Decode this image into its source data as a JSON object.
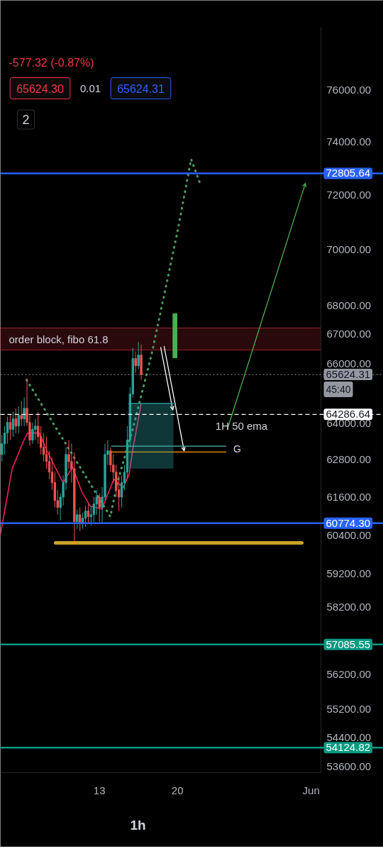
{
  "chart_data": {
    "type": "candlestick",
    "subtitle": "-577.32 (-0.87%)",
    "x": [
      4.25,
      4.5,
      4.75,
      5.0,
      5.25,
      5.5,
      5.75,
      6.0,
      6.25,
      6.5,
      6.75,
      7.0,
      7.25,
      7.5,
      7.75,
      8.0,
      8.25,
      8.5,
      8.75,
      9.0,
      9.25,
      9.5,
      9.75,
      10.0,
      10.25,
      10.5,
      10.75,
      11.0,
      11.25,
      11.5,
      11.75,
      12.0,
      12.25,
      12.5,
      12.75,
      13.0,
      13.25,
      13.5,
      13.75,
      14.0,
      14.25,
      14.5,
      14.75,
      15.0,
      15.25,
      15.5,
      15.75,
      16.0,
      16.25,
      16.5,
      16.75
    ],
    "ohlc": [
      [
        62970,
        63600,
        62740,
        63320
      ],
      [
        63320,
        63900,
        62970,
        63670
      ],
      [
        63670,
        64210,
        63320,
        64020
      ],
      [
        64020,
        64300,
        63440,
        63790
      ],
      [
        63790,
        64370,
        63550,
        64140
      ],
      [
        64140,
        64490,
        63670,
        63900
      ],
      [
        63900,
        64560,
        63670,
        64260
      ],
      [
        64260,
        64730,
        63900,
        64140
      ],
      [
        64140,
        64850,
        63900,
        64490
      ],
      [
        64490,
        65490,
        63900,
        64020
      ],
      [
        64020,
        64260,
        63250,
        63440
      ],
      [
        63440,
        64020,
        63320,
        63790
      ],
      [
        63790,
        64140,
        63440,
        63900
      ],
      [
        63900,
        64370,
        63320,
        63550
      ],
      [
        63550,
        63900,
        62970,
        63200
      ],
      [
        63200,
        63670,
        62740,
        62970
      ],
      [
        62970,
        63550,
        62510,
        62740
      ],
      [
        62740,
        63090,
        62170,
        62400
      ],
      [
        62400,
        62860,
        61830,
        62060
      ],
      [
        62060,
        62400,
        61270,
        61490
      ],
      [
        61490,
        61830,
        61040,
        61270
      ],
      [
        61270,
        61720,
        60860,
        61600
      ],
      [
        61600,
        62290,
        61330,
        62060
      ],
      [
        62060,
        63200,
        61830,
        62970
      ],
      [
        62970,
        63440,
        62510,
        62740
      ],
      [
        62740,
        63320,
        62060,
        62510
      ],
      [
        62510,
        63040,
        60220,
        60820
      ],
      [
        60820,
        61200,
        60600,
        61040
      ],
      [
        61040,
        61270,
        60530,
        60750
      ],
      [
        60750,
        61110,
        60600,
        60930
      ],
      [
        60930,
        61330,
        60660,
        61160
      ],
      [
        61160,
        61380,
        60750,
        60980
      ],
      [
        60980,
        61330,
        60710,
        61040
      ],
      [
        61040,
        61600,
        60820,
        61380
      ],
      [
        61380,
        61830,
        61040,
        61600
      ],
      [
        61600,
        61720,
        60820,
        61270
      ],
      [
        61270,
        61920,
        60780,
        61600
      ],
      [
        61600,
        63320,
        61490,
        62970
      ],
      [
        62970,
        63440,
        62630,
        63090
      ],
      [
        63090,
        63200,
        62400,
        62630
      ],
      [
        62630,
        62970,
        62060,
        62400
      ],
      [
        62400,
        62630,
        61600,
        61830
      ],
      [
        61830,
        62290,
        61160,
        61600
      ],
      [
        61600,
        62290,
        61270,
        62060
      ],
      [
        62060,
        62630,
        61830,
        62400
      ],
      [
        62400,
        63900,
        62170,
        63440
      ],
      [
        63440,
        65200,
        63200,
        64970
      ],
      [
        64970,
        66530,
        64850,
        66170
      ],
      [
        66170,
        66410,
        65680,
        65920
      ],
      [
        65920,
        66730,
        65800,
        66290
      ],
      [
        66290,
        66650,
        65440,
        65624.31
      ]
    ],
    "colors": [
      "#26a69a",
      "#26a69a",
      "#26a69a",
      "#ef5350",
      "#26a69a",
      "#ef5350",
      "#26a69a",
      "#ef5350",
      "#26a69a",
      "#ef5350",
      "#ef5350",
      "#26a69a",
      "#26a69a",
      "#ef5350",
      "#ef5350",
      "#ef5350",
      "#ef5350",
      "#ef5350",
      "#ef5350",
      "#ef5350",
      "#ef5350",
      "#26a69a",
      "#26a69a",
      "#26a69a",
      "#ef5350",
      "#ef5350",
      "#ef5350",
      "#26a69a",
      "#ef5350",
      "#26a69a",
      "#26a69a",
      "#ef5350",
      "#26a69a",
      "#26a69a",
      "#26a69a",
      "#ef5350",
      "#26a69a",
      "#26a69a",
      "#26a69a",
      "#ef5350",
      "#ef5350",
      "#ef5350",
      "#ef5350",
      "#26a69a",
      "#26a69a",
      "#26a69a",
      "#26a69a",
      "#26a69a",
      "#ef5350",
      "#26a69a",
      "#ef5350"
    ],
    "series": [
      {
        "type": "line",
        "color": "#e91e63",
        "x": [
          4.12,
          5.17,
          6.23,
          6.55,
          7.61,
          8.36,
          9.73,
          10.58,
          11.43,
          12.18,
          13.23,
          14.29,
          15.14,
          15.68,
          15.99,
          16.73
        ],
        "values": [
          60420,
          62510,
          63440,
          63670,
          63670,
          63040,
          62060,
          62560,
          61760,
          61310,
          61220,
          62170,
          61900,
          62350,
          63130,
          64610
        ]
      },
      {
        "type": "line",
        "color": "#4c9a5e",
        "line_style": "dotted",
        "x": [
          6.47,
          13.98,
          14.61,
          16.01,
          17.67,
          18.75,
          20.02,
          21.23,
          22.12
        ],
        "values": [
          65440,
          60980,
          62060,
          63830,
          66290,
          68260,
          70680,
          73340,
          72330
        ]
      },
      {
        "type": "line",
        "color": "#4caf50",
        "x": [
          24.48,
          31.48
        ],
        "values": [
          63790,
          72430
        ]
      },
      {
        "type": "line",
        "color": "#ffffff",
        "x": [
          18.5,
          19.58
        ],
        "values": [
          66550,
          64440
        ]
      },
      {
        "type": "line",
        "color": "#ffffff",
        "x": [
          18.81,
          20.6
        ],
        "values": [
          66580,
          63090
        ]
      },
      {
        "type": "line",
        "color": "#c9a227",
        "x": [
          9.07,
          31.16
        ],
        "values": [
          60160,
          60160
        ]
      },
      {
        "type": "line",
        "color": "#4db6ac",
        "x": [
          14.1,
          24.35
        ],
        "values": [
          63240,
          63240
        ]
      },
      {
        "type": "line",
        "color": "#ff9800",
        "x": [
          14.1,
          24.35
        ],
        "values": [
          63050,
          63050
        ]
      },
      {
        "type": "line",
        "color": "#30a8aa",
        "x": [
          15.62,
          19.64
        ],
        "values": [
          64650,
          64650
        ],
        "lower": [
          62510,
          62510
        ],
        "upper": [
          64650,
          64650
        ]
      },
      {
        "type": "bar",
        "color": "#4caf50",
        "x": [
          19.78
        ],
        "base": [
          66190
        ],
        "values": [
          1530
        ]
      }
    ],
    "xlim": [
      4.11,
      32.88
    ],
    "xticks": [
      13,
      20,
      {
        "value": 32,
        "label": "Jun"
      }
    ],
    "ylim": [
      53430,
      78510
    ],
    "yticks": [
      {
        "value": 76000,
        "label": "76000.00"
      },
      {
        "value": 74000,
        "label": "74000.00"
      },
      {
        "value": 72000,
        "label": "72000.00"
      },
      {
        "value": 70000,
        "label": "70000.00"
      },
      {
        "value": 68000,
        "label": "68000.00"
      },
      {
        "value": 67000,
        "label": "67000.00"
      },
      {
        "value": 66000,
        "label": "66000.00"
      },
      {
        "value": 64000,
        "label": "64000.00"
      },
      {
        "value": 62800,
        "label": "62800.00"
      },
      {
        "value": 61600,
        "label": "61600.00"
      },
      {
        "value": 60400,
        "label": "60400.00"
      },
      {
        "value": 59200,
        "label": "59200.00"
      },
      {
        "value": 58200,
        "label": "58200.00"
      },
      {
        "value": 56200,
        "label": "56200.00"
      },
      {
        "value": 55200,
        "label": "55200.00"
      },
      {
        "value": 54400,
        "label": "54400.00"
      },
      {
        "value": 53600,
        "label": "53600.00"
      }
    ],
    "log": true,
    "grid": false,
    "ref_lines": [
      {
        "axis": "y",
        "value": 72805.64,
        "label": "72805.64",
        "color": "#2962ff"
      },
      {
        "axis": "y",
        "value": 65624.31,
        "label": "65624.31",
        "color": "#9598a1",
        "line_style": "dotted"
      },
      {
        "axis": "y",
        "value": 64286.64,
        "label": "64286.64",
        "color": "#ffffff",
        "line_style": "dashed"
      },
      {
        "axis": "y",
        "value": 60774.3,
        "label": "60774.30",
        "color": "#2962ff"
      },
      {
        "axis": "y",
        "value": 57085.55,
        "label": "57085.55",
        "color": "#089981"
      },
      {
        "axis": "y",
        "value": 54124.82,
        "label": "54124.82",
        "color": "#089981"
      }
    ],
    "bands": [
      {
        "axis": "y",
        "from": 66460,
        "to": 67220,
        "label": "order block, fibo 61.8",
        "color": "#f23645"
      }
    ],
    "annotations": [
      "65624.30",
      "0.01",
      "65624.31",
      "2",
      "45:40",
      "1h",
      "G",
      {
        "text": "1H 50 ema",
        "x": 25.75,
        "y": 64286.64
      }
    ]
  }
}
